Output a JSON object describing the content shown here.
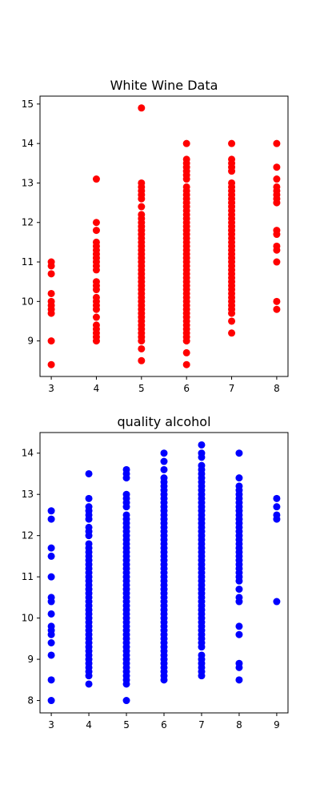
{
  "chart_data": [
    {
      "type": "scatter",
      "title": "White Wine Data",
      "color": "#ff0000",
      "xlim": [
        2.75,
        8.25
      ],
      "ylim": [
        8.1,
        15.2
      ],
      "xticks": [
        3,
        4,
        5,
        6,
        7,
        8
      ],
      "yticks": [
        9,
        10,
        11,
        12,
        13,
        14,
        15
      ],
      "grid": false,
      "series": [
        {
          "x": 3,
          "y": [
            8.4,
            9.0,
            9.7,
            9.8,
            9.9,
            10.0,
            10.2,
            10.7,
            10.9,
            11.0
          ]
        },
        {
          "x": 4,
          "y": [
            9.0,
            9.1,
            9.2,
            9.3,
            9.4,
            9.6,
            9.8,
            9.9,
            10.0,
            10.1,
            10.3,
            10.4,
            10.5,
            10.8,
            10.9,
            11.0,
            11.1,
            11.2,
            11.3,
            11.4,
            11.5,
            11.8,
            12.0,
            13.1
          ]
        },
        {
          "x": 5,
          "y": [
            8.5,
            8.8,
            9.0,
            9.1,
            9.2,
            9.3,
            9.4,
            9.5,
            9.6,
            9.7,
            9.8,
            9.9,
            10.0,
            10.1,
            10.2,
            10.3,
            10.4,
            10.5,
            10.6,
            10.7,
            10.8,
            10.9,
            11.0,
            11.1,
            11.2,
            11.3,
            11.4,
            11.5,
            11.6,
            11.7,
            11.8,
            11.9,
            12.0,
            12.1,
            12.2,
            12.4,
            12.6,
            12.7,
            12.8,
            12.9,
            13.0,
            14.9
          ]
        },
        {
          "x": 6,
          "y": [
            8.4,
            8.7,
            9.0,
            9.1,
            9.2,
            9.3,
            9.4,
            9.5,
            9.6,
            9.7,
            9.8,
            9.9,
            10.0,
            10.1,
            10.2,
            10.3,
            10.4,
            10.5,
            10.6,
            10.7,
            10.8,
            10.9,
            11.0,
            11.1,
            11.2,
            11.3,
            11.4,
            11.5,
            11.6,
            11.7,
            11.8,
            11.9,
            12.0,
            12.1,
            12.2,
            12.3,
            12.4,
            12.5,
            12.6,
            12.7,
            12.8,
            12.9,
            13.1,
            13.2,
            13.3,
            13.4,
            13.5,
            13.6,
            14.0
          ]
        },
        {
          "x": 7,
          "y": [
            9.2,
            9.5,
            9.7,
            9.8,
            9.9,
            10.0,
            10.1,
            10.2,
            10.3,
            10.4,
            10.5,
            10.6,
            10.7,
            10.8,
            10.9,
            11.0,
            11.1,
            11.2,
            11.3,
            11.4,
            11.5,
            11.6,
            11.7,
            11.8,
            11.9,
            12.0,
            12.1,
            12.2,
            12.3,
            12.4,
            12.5,
            12.6,
            12.7,
            12.8,
            12.9,
            13.0,
            13.3,
            13.4,
            13.5,
            13.6,
            14.0
          ]
        },
        {
          "x": 8,
          "y": [
            9.8,
            10.0,
            11.0,
            11.3,
            11.4,
            11.7,
            11.8,
            12.5,
            12.6,
            12.7,
            12.8,
            12.9,
            13.1,
            13.4,
            14.0
          ]
        }
      ]
    },
    {
      "type": "scatter",
      "title": "quality alcohol",
      "color": "#0000ff",
      "xlim": [
        2.7,
        9.3
      ],
      "ylim": [
        7.7,
        14.5
      ],
      "xticks": [
        3,
        4,
        5,
        6,
        7,
        8,
        9
      ],
      "yticks": [
        8,
        9,
        10,
        11,
        12,
        13,
        14
      ],
      "grid": false,
      "series": [
        {
          "x": 3,
          "y": [
            8.0,
            8.5,
            9.1,
            9.4,
            9.6,
            9.7,
            9.8,
            10.1,
            10.4,
            10.5,
            11.0,
            11.5,
            11.7,
            12.4,
            12.6
          ]
        },
        {
          "x": 4,
          "y": [
            8.4,
            8.6,
            8.7,
            8.8,
            8.9,
            9.0,
            9.1,
            9.2,
            9.3,
            9.4,
            9.5,
            9.6,
            9.7,
            9.8,
            9.9,
            10.0,
            10.1,
            10.2,
            10.3,
            10.4,
            10.5,
            10.6,
            10.7,
            10.8,
            10.9,
            11.0,
            11.1,
            11.2,
            11.3,
            11.4,
            11.5,
            11.6,
            11.7,
            11.8,
            12.0,
            12.1,
            12.2,
            12.4,
            12.5,
            12.6,
            12.7,
            12.9,
            13.5
          ]
        },
        {
          "x": 5,
          "y": [
            8.0,
            8.4,
            8.5,
            8.6,
            8.7,
            8.8,
            8.9,
            9.0,
            9.1,
            9.2,
            9.3,
            9.4,
            9.5,
            9.6,
            9.7,
            9.8,
            9.9,
            10.0,
            10.1,
            10.2,
            10.3,
            10.4,
            10.5,
            10.6,
            10.7,
            10.8,
            10.9,
            11.0,
            11.1,
            11.2,
            11.3,
            11.4,
            11.5,
            11.6,
            11.7,
            11.8,
            11.9,
            12.0,
            12.1,
            12.2,
            12.3,
            12.4,
            12.5,
            12.7,
            12.8,
            12.9,
            13.0,
            13.4,
            13.5,
            13.6
          ]
        },
        {
          "x": 6,
          "y": [
            8.5,
            8.6,
            8.7,
            8.8,
            8.9,
            9.0,
            9.1,
            9.2,
            9.3,
            9.4,
            9.5,
            9.6,
            9.7,
            9.8,
            9.9,
            10.0,
            10.1,
            10.2,
            10.3,
            10.4,
            10.5,
            10.6,
            10.7,
            10.8,
            10.9,
            11.0,
            11.1,
            11.2,
            11.3,
            11.4,
            11.5,
            11.6,
            11.7,
            11.8,
            11.9,
            12.0,
            12.1,
            12.2,
            12.3,
            12.4,
            12.5,
            12.6,
            12.7,
            12.8,
            12.9,
            13.0,
            13.1,
            13.2,
            13.3,
            13.4,
            13.6,
            13.8,
            14.0
          ]
        },
        {
          "x": 7,
          "y": [
            8.6,
            8.7,
            8.8,
            8.9,
            9.0,
            9.1,
            9.3,
            9.4,
            9.5,
            9.6,
            9.7,
            9.8,
            9.9,
            10.0,
            10.1,
            10.2,
            10.3,
            10.4,
            10.5,
            10.6,
            10.7,
            10.8,
            10.9,
            11.0,
            11.1,
            11.2,
            11.3,
            11.4,
            11.5,
            11.6,
            11.7,
            11.8,
            11.9,
            12.0,
            12.1,
            12.2,
            12.3,
            12.4,
            12.5,
            12.6,
            12.7,
            12.8,
            12.9,
            13.0,
            13.1,
            13.2,
            13.3,
            13.4,
            13.5,
            13.6,
            13.7,
            13.9,
            14.0,
            14.2
          ]
        },
        {
          "x": 8,
          "y": [
            8.5,
            8.8,
            8.9,
            9.6,
            9.8,
            10.4,
            10.5,
            10.7,
            10.9,
            11.0,
            11.1,
            11.2,
            11.3,
            11.4,
            11.5,
            11.6,
            11.7,
            11.8,
            11.9,
            12.0,
            12.1,
            12.2,
            12.3,
            12.4,
            12.5,
            12.6,
            12.7,
            12.8,
            12.9,
            13.0,
            13.1,
            13.2,
            13.4,
            14.0
          ]
        },
        {
          "x": 9,
          "y": [
            10.4,
            12.4,
            12.5,
            12.7,
            12.9
          ]
        }
      ]
    }
  ]
}
